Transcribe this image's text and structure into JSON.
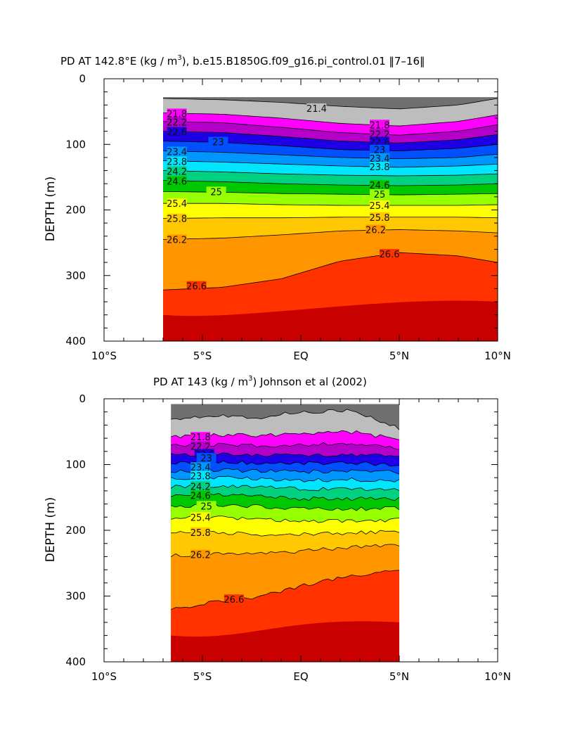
{
  "chart_data": [
    {
      "type": "contour",
      "title": "PD AT 142.8°E (kg / m",
      "title_sup": "3",
      "title_rest": "), b.e15.B1850G.f09_g16.pi_control.01 ‖7–16‖",
      "ylabel": "DEPTH (m)",
      "xlim": [
        -10,
        10
      ],
      "ylim": [
        0,
        400
      ],
      "y_inverted": true,
      "x_ticks": [
        -10,
        -5,
        0,
        5,
        10
      ],
      "x_tick_labels": [
        "10°S",
        "5°S",
        "EQ",
        "5°N",
        "10°N"
      ],
      "y_ticks": [
        0,
        100,
        200,
        300,
        400
      ],
      "y_tick_labels": [
        "0",
        "100",
        "200",
        "300",
        "400"
      ],
      "data_extent_lat": [
        -7.0,
        10.0
      ],
      "contour_levels": [
        21.4,
        21.8,
        22.2,
        22.6,
        23,
        23.4,
        23.8,
        24.2,
        24.6,
        25,
        25.4,
        25.8,
        26.2,
        26.6
      ],
      "isopycnal_depths_lat": [
        -7,
        -4,
        -1,
        2,
        5,
        8,
        10
      ],
      "isopycnal_depths": [
        {
          "level": 21.4,
          "depths": [
            30,
            32,
            36,
            42,
            46,
            40,
            30
          ]
        },
        {
          "level": 21.8,
          "depths": [
            52,
            54,
            60,
            68,
            72,
            65,
            55
          ]
        },
        {
          "level": 22.2,
          "depths": [
            65,
            67,
            74,
            82,
            86,
            80,
            70
          ]
        },
        {
          "level": 22.6,
          "depths": [
            80,
            82,
            88,
            95,
            98,
            93,
            85
          ]
        },
        {
          "level": 23,
          "depths": [
            95,
            97,
            102,
            108,
            110,
            106,
            100
          ]
        },
        {
          "level": 23.4,
          "depths": [
            110,
            112,
            116,
            120,
            122,
            120,
            115
          ]
        },
        {
          "level": 23.8,
          "depths": [
            125,
            127,
            130,
            133,
            135,
            133,
            130
          ]
        },
        {
          "level": 24.2,
          "depths": [
            140,
            142,
            145,
            147,
            148,
            147,
            145
          ]
        },
        {
          "level": 24.6,
          "depths": [
            155,
            157,
            160,
            162,
            163,
            162,
            160
          ]
        },
        {
          "level": 25,
          "depths": [
            172,
            173,
            175,
            176,
            177,
            176,
            175
          ]
        },
        {
          "level": 25.4,
          "depths": [
            190,
            190,
            192,
            193,
            193,
            193,
            192
          ]
        },
        {
          "level": 25.8,
          "depths": [
            213,
            212,
            212,
            211,
            211,
            211,
            212
          ]
        },
        {
          "level": 26.2,
          "depths": [
            245,
            243,
            238,
            232,
            230,
            232,
            235
          ]
        },
        {
          "level": 26.6,
          "depths": [
            322,
            318,
            305,
            278,
            265,
            270,
            280
          ]
        }
      ],
      "labels": [
        {
          "text": "21.4",
          "lat": 0.8,
          "depth": 45
        },
        {
          "text": "21.8",
          "lat": -6.3,
          "depth": 53
        },
        {
          "text": "22.2",
          "lat": -6.3,
          "depth": 66
        },
        {
          "text": "22.6",
          "lat": -6.3,
          "depth": 81
        },
        {
          "text": "23",
          "lat": -4.2,
          "depth": 96
        },
        {
          "text": "23.4",
          "lat": -6.3,
          "depth": 111
        },
        {
          "text": "23.8",
          "lat": -6.3,
          "depth": 126
        },
        {
          "text": "24.2",
          "lat": -6.3,
          "depth": 141
        },
        {
          "text": "24.6",
          "lat": -6.3,
          "depth": 156
        },
        {
          "text": "25",
          "lat": -4.3,
          "depth": 172
        },
        {
          "text": "25.4",
          "lat": -6.3,
          "depth": 190
        },
        {
          "text": "25.8",
          "lat": -6.3,
          "depth": 213
        },
        {
          "text": "26.2",
          "lat": -6.3,
          "depth": 245
        },
        {
          "text": "26.6",
          "lat": -5.3,
          "depth": 316
        },
        {
          "text": "21.8",
          "lat": 4.0,
          "depth": 70
        },
        {
          "text": "22.2",
          "lat": 4.0,
          "depth": 84
        },
        {
          "text": "22.6",
          "lat": 4.0,
          "depth": 96
        },
        {
          "text": "23",
          "lat": 4.0,
          "depth": 108
        },
        {
          "text": "23.4",
          "lat": 4.0,
          "depth": 121
        },
        {
          "text": "23.8",
          "lat": 4.0,
          "depth": 134
        },
        {
          "text": "24.6",
          "lat": 4.0,
          "depth": 162
        },
        {
          "text": "25",
          "lat": 4.0,
          "depth": 176
        },
        {
          "text": "25.4",
          "lat": 4.0,
          "depth": 193
        },
        {
          "text": "25.8",
          "lat": 4.0,
          "depth": 211
        },
        {
          "text": "26.2",
          "lat": 3.8,
          "depth": 230
        },
        {
          "text": "26.6",
          "lat": 4.5,
          "depth": 267
        }
      ]
    },
    {
      "type": "contour",
      "title": "PD AT 143 (kg / m",
      "title_sup": "3",
      "title_rest": ") Johnson et al (2002)",
      "ylabel": "DEPTH (m)",
      "xlim": [
        -10,
        10
      ],
      "ylim": [
        0,
        400
      ],
      "y_inverted": true,
      "x_ticks": [
        -10,
        -5,
        0,
        5,
        10
      ],
      "x_tick_labels": [
        "10°S",
        "5°S",
        "EQ",
        "5°N",
        "10°N"
      ],
      "y_ticks": [
        0,
        100,
        200,
        300,
        400
      ],
      "y_tick_labels": [
        "0",
        "100",
        "200",
        "300",
        "400"
      ],
      "data_extent_lat": [
        -6.6,
        5.0
      ],
      "contour_levels": [
        21.8,
        22.2,
        22.6,
        23,
        23.4,
        23.8,
        24.2,
        24.6,
        25,
        25.4,
        25.8,
        26.2,
        26.6
      ],
      "isopycnal_depths_lat": [
        -6.6,
        -4.5,
        -2,
        0,
        2.5,
        5
      ],
      "isopycnal_depths": [
        {
          "level": 21.4,
          "depths": [
            30,
            25,
            28,
            20,
            18,
            45
          ]
        },
        {
          "level": 21.8,
          "depths": [
            58,
            55,
            56,
            52,
            50,
            62
          ]
        },
        {
          "level": 22.2,
          "depths": [
            72,
            70,
            72,
            70,
            68,
            76
          ]
        },
        {
          "level": 22.6,
          "depths": [
            86,
            84,
            86,
            86,
            85,
            88
          ]
        },
        {
          "level": 23,
          "depths": [
            98,
            96,
            98,
            98,
            98,
            100
          ]
        },
        {
          "level": 23.4,
          "depths": [
            110,
            108,
            110,
            111,
            110,
            112
          ]
        },
        {
          "level": 23.8,
          "depths": [
            122,
            120,
            122,
            124,
            123,
            124
          ]
        },
        {
          "level": 24.2,
          "depths": [
            134,
            132,
            134,
            137,
            137,
            138
          ]
        },
        {
          "level": 24.6,
          "depths": [
            148,
            145,
            148,
            152,
            152,
            152
          ]
        },
        {
          "level": 25,
          "depths": [
            164,
            161,
            164,
            168,
            168,
            166
          ]
        },
        {
          "level": 25.4,
          "depths": [
            182,
            180,
            183,
            186,
            186,
            184
          ]
        },
        {
          "level": 25.8,
          "depths": [
            205,
            203,
            206,
            206,
            204,
            202
          ]
        },
        {
          "level": 26.2,
          "depths": [
            238,
            236,
            236,
            232,
            226,
            222
          ]
        },
        {
          "level": 26.6,
          "depths": [
            320,
            310,
            300,
            285,
            270,
            258
          ]
        }
      ],
      "labels": [
        {
          "text": "21.8",
          "lat": -5.1,
          "depth": 58
        },
        {
          "text": "22.2",
          "lat": -5.1,
          "depth": 72
        },
        {
          "text": "22.6",
          "lat": -4.9,
          "depth": 84
        },
        {
          "text": "23",
          "lat": -4.8,
          "depth": 90
        },
        {
          "text": "23.4",
          "lat": -5.1,
          "depth": 104
        },
        {
          "text": "23.8",
          "lat": -5.1,
          "depth": 117
        },
        {
          "text": "24.2",
          "lat": -5.1,
          "depth": 133
        },
        {
          "text": "24.6",
          "lat": -5.1,
          "depth": 147
        },
        {
          "text": "25",
          "lat": -4.8,
          "depth": 163
        },
        {
          "text": "25.4",
          "lat": -5.1,
          "depth": 180
        },
        {
          "text": "25.8",
          "lat": -5.1,
          "depth": 203
        },
        {
          "text": "26.2",
          "lat": -5.1,
          "depth": 237
        },
        {
          "text": "26.6",
          "lat": -3.4,
          "depth": 305
        }
      ]
    }
  ],
  "colors": {
    "21.0": "#707070",
    "21.4": "#bdbdbd",
    "21.8": "#ff00ff",
    "22.2": "#b400c8",
    "22.6": "#1e00e6",
    "23.0": "#0050ff",
    "23.4": "#0096ff",
    "23.8": "#00e6ff",
    "24.2": "#00d282",
    "24.6": "#00c800",
    "25.0": "#96ff00",
    "25.4": "#ffff00",
    "25.8": "#ffc800",
    "26.2": "#ff9600",
    "26.6": "#ff3200",
    "27.0": "#e60000",
    "27.4": "#c80000"
  }
}
